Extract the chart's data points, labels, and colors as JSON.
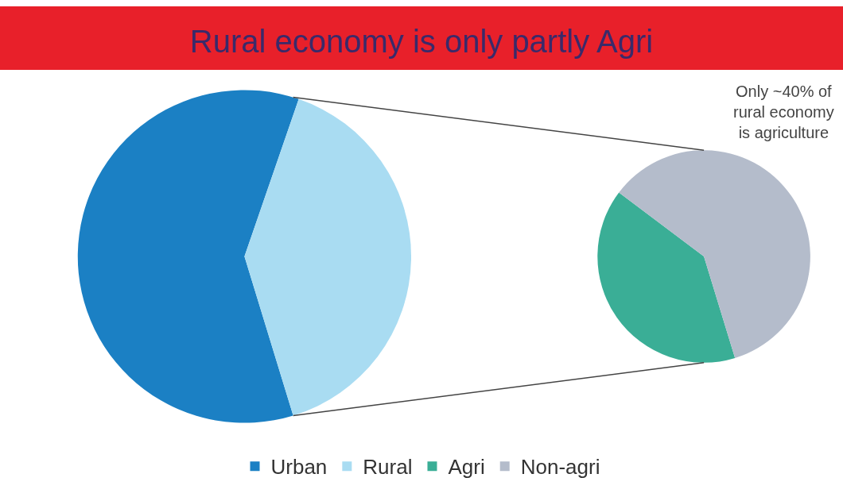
{
  "chart_data": [
    {
      "type": "pie",
      "title": "Rural economy is only partly Agri",
      "categories": [
        "Urban",
        "Rural"
      ],
      "values": [
        60,
        40
      ],
      "colors": [
        "#1b80c4",
        "#a9dcf2"
      ],
      "legend": "bottom"
    },
    {
      "type": "pie",
      "categories": [
        "Agri",
        "Non-agri"
      ],
      "values": [
        40,
        60
      ],
      "colors": [
        "#3aae96",
        "#b4bccb"
      ],
      "legend": "bottom",
      "annotations": [
        "Only ~40% of\nrural economy\nis agriculture"
      ]
    }
  ]
}
